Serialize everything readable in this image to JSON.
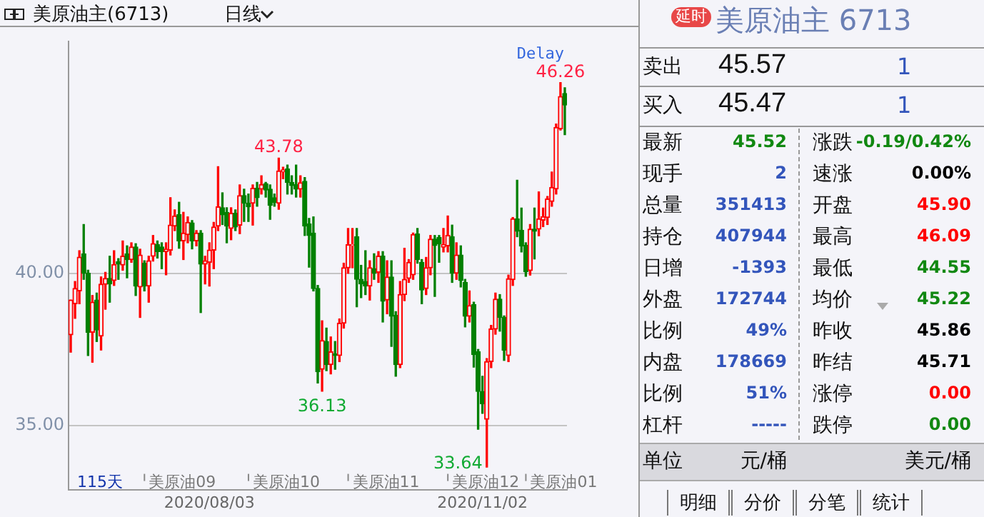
{
  "chart_data": [
    {
      "type": "candlestick",
      "title": "美原油主(6713)",
      "categories": [
        null,
        null,
        null,
        null,
        null,
        null,
        null,
        null,
        null,
        null,
        null,
        null,
        null,
        null,
        null,
        null,
        null,
        null,
        null,
        null,
        null,
        null,
        null,
        null,
        null,
        null,
        null,
        null,
        null,
        null,
        null,
        null,
        "2020/08/03",
        null,
        null,
        null,
        null,
        null,
        null,
        null,
        null,
        null,
        null,
        null,
        null,
        null,
        null,
        null,
        null,
        null,
        null,
        null,
        null,
        null,
        null,
        null,
        null,
        null,
        null,
        null,
        null,
        null,
        null,
        null,
        null,
        null,
        null,
        null,
        null,
        null,
        null,
        null,
        null,
        null,
        null,
        null,
        null,
        null,
        null,
        null,
        null,
        null,
        null,
        null,
        null,
        null,
        null,
        null,
        null,
        null,
        null,
        null,
        null,
        null,
        null,
        "2020/11/02",
        null,
        null,
        null,
        null,
        null,
        null,
        null,
        null,
        null,
        null,
        null,
        null,
        null,
        null,
        null,
        null,
        null,
        null,
        null
      ],
      "ohlc": [
        [
          37.98,
          39.12,
          37.41,
          39.12
        ],
        [
          39.0,
          39.73,
          38.52,
          39.5
        ],
        [
          39.42,
          40.74,
          39.0,
          40.53
        ],
        [
          40.64,
          41.6,
          39.8,
          40.0
        ],
        [
          40.0,
          40.1,
          37.3,
          38.06
        ],
        [
          38.06,
          39.27,
          37.08,
          39.05
        ],
        [
          39.12,
          39.35,
          37.76,
          38.14
        ],
        [
          37.94,
          39.88,
          37.48,
          39.64
        ],
        [
          39.64,
          40.03,
          38.82,
          39.83
        ],
        [
          39.83,
          40.56,
          39.05,
          39.65
        ],
        [
          39.76,
          40.74,
          39.6,
          40.29
        ],
        [
          40.38,
          40.48,
          39.8,
          40.3
        ],
        [
          40.27,
          41.06,
          40.1,
          40.56
        ],
        [
          40.64,
          40.9,
          39.85,
          40.45
        ],
        [
          40.45,
          41.0,
          40.36,
          40.86
        ],
        [
          40.86,
          40.97,
          39.27,
          39.58
        ],
        [
          39.55,
          40.79,
          38.55,
          40.6
        ],
        [
          40.33,
          40.41,
          39.42,
          39.58
        ],
        [
          39.58,
          40.56,
          39.05,
          40.41
        ],
        [
          40.56,
          41.24,
          40.4,
          40.97
        ],
        [
          40.94,
          41.06,
          40.5,
          40.71
        ],
        [
          40.86,
          41.0,
          40.15,
          40.71
        ],
        [
          40.71,
          41.0,
          39.95,
          40.79
        ],
        [
          40.76,
          42.48,
          40.6,
          41.58
        ],
        [
          41.55,
          42.08,
          41.4,
          41.88
        ],
        [
          41.92,
          42.33,
          40.82,
          41.06
        ],
        [
          41.06,
          42.0,
          40.45,
          41.32
        ],
        [
          41.27,
          41.85,
          41.0,
          41.67
        ],
        [
          41.65,
          41.73,
          40.8,
          41.06
        ],
        [
          41.06,
          41.4,
          40.9,
          41.32
        ],
        [
          41.32,
          41.4,
          38.71,
          40.3
        ],
        [
          40.3,
          40.56,
          39.65,
          40.41
        ],
        [
          40.36,
          41.0,
          39.58,
          40.76
        ],
        [
          40.76,
          41.67,
          40.15,
          41.52
        ],
        [
          41.55,
          43.5,
          41.4,
          42.18
        ],
        [
          42.15,
          42.64,
          41.6,
          41.92
        ],
        [
          42.0,
          42.15,
          41.0,
          41.55
        ],
        [
          41.47,
          42.15,
          41.1,
          41.97
        ],
        [
          41.97,
          42.08,
          41.4,
          41.52
        ],
        [
          41.58,
          42.9,
          41.3,
          42.55
        ],
        [
          42.55,
          42.76,
          41.7,
          42.3
        ],
        [
          42.3,
          42.6,
          41.7,
          42.18
        ],
        [
          42.3,
          42.9,
          41.58,
          42.79
        ],
        [
          42.79,
          42.98,
          42.2,
          42.48
        ],
        [
          42.76,
          43.2,
          42.6,
          42.91
        ],
        [
          42.94,
          42.98,
          42.5,
          42.73
        ],
        [
          42.76,
          42.9,
          41.77,
          42.23
        ],
        [
          42.48,
          42.6,
          42.2,
          42.33
        ],
        [
          42.3,
          43.78,
          42.1,
          43.36
        ],
        [
          43.33,
          43.48,
          43.1,
          43.39
        ],
        [
          43.42,
          43.55,
          42.6,
          42.98
        ],
        [
          42.98,
          43.2,
          42.6,
          42.88
        ],
        [
          42.91,
          43.55,
          42.5,
          42.76
        ],
        [
          42.76,
          43.2,
          42.5,
          42.97
        ],
        [
          43.02,
          43.14,
          41.24,
          41.55
        ],
        [
          41.62,
          41.8,
          40.2,
          41.24
        ],
        [
          41.32,
          41.85,
          39.42,
          39.5
        ],
        [
          39.5,
          39.6,
          36.4,
          36.77
        ],
        [
          36.85,
          38.44,
          36.13,
          37.79
        ],
        [
          37.76,
          38.2,
          36.8,
          37.0
        ],
        [
          37.0,
          37.91,
          36.7,
          37.42
        ],
        [
          37.36,
          37.76,
          36.85,
          37.3
        ],
        [
          37.3,
          38.5,
          37.1,
          38.36
        ],
        [
          38.36,
          40.33,
          38.2,
          40.18
        ],
        [
          40.18,
          41.47,
          40.0,
          40.94
        ],
        [
          40.91,
          41.47,
          40.18,
          40.94
        ],
        [
          41.2,
          41.47,
          38.9,
          39.8
        ],
        [
          39.8,
          40.26,
          39.2,
          39.65
        ],
        [
          39.73,
          40.74,
          39.3,
          39.58
        ],
        [
          39.58,
          40.41,
          39.12,
          40.18
        ],
        [
          40.15,
          40.64,
          39.8,
          40.0
        ],
        [
          40.03,
          40.71,
          39.7,
          40.56
        ],
        [
          40.56,
          40.71,
          38.4,
          39.08
        ],
        [
          39.12,
          40.41,
          38.67,
          39.88
        ],
        [
          39.88,
          40.41,
          37.6,
          38.59
        ],
        [
          38.62,
          38.74,
          36.62,
          37.0
        ],
        [
          37.0,
          39.73,
          36.9,
          39.3
        ],
        [
          39.3,
          40.82,
          39.1,
          39.8
        ],
        [
          39.83,
          40.45,
          39.7,
          40.36
        ],
        [
          39.95,
          41.32,
          39.8,
          41.27
        ],
        [
          41.29,
          41.47,
          40.33,
          40.45
        ],
        [
          40.36,
          40.45,
          39.0,
          39.45
        ],
        [
          39.5,
          40.52,
          39.3,
          40.18
        ],
        [
          40.18,
          41.24,
          39.95,
          41.12
        ],
        [
          41.12,
          41.24,
          39.24,
          40.91
        ],
        [
          41.17,
          41.24,
          40.36,
          40.97
        ],
        [
          40.86,
          41.47,
          40.7,
          40.94
        ],
        [
          40.9,
          41.88,
          40.7,
          41.24
        ],
        [
          41.2,
          41.58,
          39.7,
          40.0
        ],
        [
          40.0,
          41.0,
          39.8,
          40.6
        ],
        [
          40.6,
          40.9,
          39.55,
          39.76
        ],
        [
          39.7,
          39.8,
          38.24,
          38.59
        ],
        [
          38.59,
          39.42,
          38.4,
          38.94
        ],
        [
          38.97,
          39.05,
          36.92,
          37.33
        ],
        [
          37.42,
          37.5,
          34.88,
          36.12
        ],
        [
          36.12,
          36.62,
          35.4,
          35.71
        ],
        [
          35.21,
          37.2,
          33.64,
          37.1
        ],
        [
          37.1,
          38.29,
          36.9,
          38.17
        ],
        [
          38.17,
          39.35,
          38.0,
          39.15
        ],
        [
          39.15,
          39.3,
          38.1,
          38.55
        ],
        [
          38.55,
          38.6,
          37.14,
          37.47
        ],
        [
          37.3,
          39.94,
          37.1,
          39.82
        ],
        [
          39.79,
          41.83,
          39.6,
          41.79
        ],
        [
          41.79,
          43.05,
          41.2,
          41.38
        ],
        [
          41.41,
          42.14,
          40.7,
          40.89
        ],
        [
          40.92,
          41.0,
          39.9,
          40.05
        ],
        [
          40.09,
          41.6,
          39.94,
          41.45
        ],
        [
          41.45,
          42.14,
          40.47,
          41.38
        ],
        [
          41.45,
          42.67,
          41.23,
          41.79
        ],
        [
          41.74,
          42.14,
          41.53,
          41.86
        ],
        [
          41.83,
          42.52,
          41.6,
          42.44
        ],
        [
          42.36,
          43.32,
          42.2,
          42.82
        ],
        [
          42.77,
          44.9,
          42.6,
          44.79
        ],
        [
          44.74,
          46.26,
          44.7,
          45.8
        ],
        [
          45.9,
          46.09,
          44.55,
          45.52
        ]
      ],
      "colors": [
        "#ff0000",
        "#ff0000",
        "#ff0000",
        "#008000",
        "#008000",
        "#ff0000",
        "#008000",
        "#ff0000",
        "#ff0000",
        "#008000",
        "#ff0000",
        "#008000",
        "#ff0000",
        "#008000",
        "#ff0000",
        "#008000",
        "#ff0000",
        "#008000",
        "#ff0000",
        "#ff0000",
        "#008000",
        "#008000",
        "#ff0000",
        "#ff0000",
        "#ff0000",
        "#008000",
        "#ff0000",
        "#ff0000",
        "#008000",
        "#ff0000",
        "#008000",
        "#ff0000",
        "#ff0000",
        "#ff0000",
        "#ff0000",
        "#008000",
        "#008000",
        "#ff0000",
        "#008000",
        "#ff0000",
        "#008000",
        "#008000",
        "#ff0000",
        "#008000",
        "#ff0000",
        "#008000",
        "#008000",
        "#008000",
        "#ff0000",
        "#ff0000",
        "#008000",
        "#008000",
        "#008000",
        "#ff0000",
        "#008000",
        "#008000",
        "#008000",
        "#008000",
        "#ff0000",
        "#008000",
        "#ff0000",
        "#008000",
        "#ff0000",
        "#ff0000",
        "#ff0000",
        "#ff0000",
        "#008000",
        "#008000",
        "#008000",
        "#ff0000",
        "#008000",
        "#ff0000",
        "#008000",
        "#ff0000",
        "#008000",
        "#008000",
        "#ff0000",
        "#ff0000",
        "#ff0000",
        "#ff0000",
        "#008000",
        "#008000",
        "#ff0000",
        "#ff0000",
        "#008000",
        "#008000",
        "#ff0000",
        "#ff0000",
        "#008000",
        "#ff0000",
        "#008000",
        "#008000",
        "#ff0000",
        "#008000",
        "#008000",
        "#008000",
        "#ff0000",
        "#ff0000",
        "#ff0000",
        "#008000",
        "#008000",
        "#ff0000",
        "#ff0000",
        "#008000",
        "#008000",
        "#008000",
        "#ff0000",
        "#008000",
        "#ff0000",
        "#ff0000",
        "#ff0000",
        "#ff0000",
        "#ff0000",
        "#ff0000",
        "#008000"
      ],
      "ylim": [
        32.9,
        47.6
      ],
      "yticks": [
        {
          "value": 35,
          "label": "35.00"
        },
        {
          "value": 40,
          "label": "40.00"
        }
      ],
      "grid": "y",
      "annotations": [
        "日线",
        "Delay",
        "115天",
        "美原油09",
        "美原油10",
        "美原油11",
        "美原油12",
        "美原油01",
        {
          "text": "43.78",
          "y": 43.78
        },
        {
          "text": "36.13",
          "y": 36.13
        },
        "33.64",
        {
          "text": "46.26",
          "y": 46.26
        }
      ]
    },
    {
      "type": "other",
      "title": "美原油主 6713",
      "annotations": [
        "延时",
        "卖出",
        "45.57",
        "1",
        "买入",
        "45.47",
        "1",
        "最新",
        "45.52",
        "涨跌",
        "-0.19/0.42%",
        "现手",
        "2",
        "速涨",
        "0.00%",
        "总量",
        "351413",
        "开盘",
        "45.90",
        "持仓",
        "407944",
        "最高",
        "46.09",
        "日增",
        "-1393",
        "最低",
        "44.55",
        "外盘",
        "172744",
        "均价",
        "45.22",
        "比例",
        "49%",
        "昨收",
        "45.86",
        "内盘",
        "178669",
        "昨结",
        "45.71",
        "比例",
        "51%",
        "涨停",
        "0.00",
        "杠杆",
        "-----",
        "跌停",
        "0.00",
        "单位",
        "元/桶",
        "美元/桶",
        "明细",
        "分价",
        "分笔",
        "统计"
      ]
    }
  ]
}
